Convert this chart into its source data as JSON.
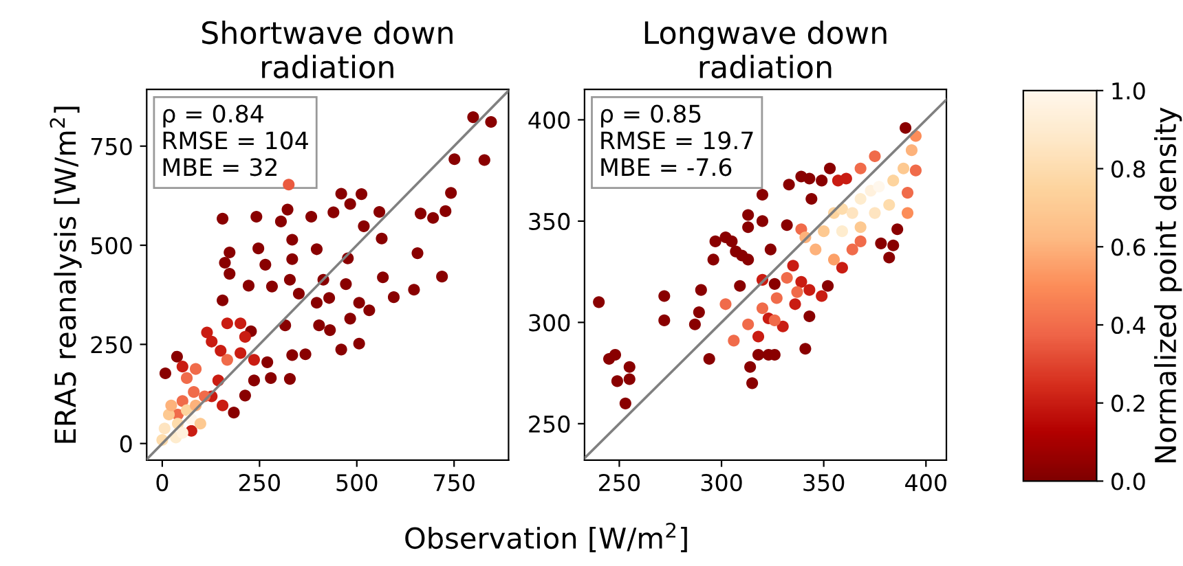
{
  "chart_data": [
    {
      "type": "scatter",
      "title": "Shortwave down\nradiation",
      "xlabel": "Observation [W/m$^{2}$]",
      "ylabel": "ERA5 reanalysis [W/m$^{2}$]",
      "annotations": [
        "ρ = 0.84\nRMSE = 104\nMBE = 32"
      ],
      "xlim": [
        -40,
        890
      ],
      "ylim": [
        -42,
        893
      ],
      "xticks": [
        0,
        250,
        500,
        750
      ],
      "yticks": [
        0,
        250,
        500,
        750
      ],
      "grid": false,
      "legend": false,
      "series": [
        {
          "marker": "circle",
          "x": [
            799,
            845,
            751,
            828,
            460,
            512,
            483,
            558,
            664,
            728,
            742,
            696,
            155,
            242,
            322,
            383,
            440,
            518,
            305,
            334,
            247,
            173,
            397,
            564,
            161,
            265,
            334,
            477,
            656,
            719,
            173,
            222,
            282,
            328,
            351,
            414,
            472,
            567,
            647,
            595,
            429,
            506,
            155,
            397,
            483,
            532,
            403,
            431,
            316,
            228,
            460,
            506,
            368,
            334,
            270,
            279,
            328,
            236,
            213,
            184,
            8,
            38,
            115,
            167,
            201,
            127,
            213,
            150,
            201,
            236,
            52,
            144,
            127,
            155,
            75,
            63,
            86,
            81,
            109,
            52,
            40,
            167,
            17,
            40,
            63,
            86,
            6,
            35,
            52,
            0,
            75,
            98,
            23,
            325
          ],
          "values": [
            823,
            811,
            717,
            715,
            630,
            629,
            604,
            584,
            580,
            586,
            632,
            569,
            567,
            572,
            590,
            572,
            583,
            548,
            560,
            514,
            492,
            482,
            490,
            517,
            456,
            451,
            465,
            467,
            480,
            421,
            428,
            398,
            396,
            413,
            378,
            413,
            402,
            419,
            388,
            369,
            367,
            355,
            361,
            355,
            315,
            336,
            298,
            286,
            298,
            283,
            237,
            252,
            225,
            223,
            205,
            165,
            163,
            159,
            121,
            78,
            177,
            219,
            280,
            303,
            303,
            257,
            269,
            234,
            228,
            211,
            194,
            159,
            119,
            96,
            32,
            165,
            188,
            130,
            119,
            107,
            73,
            211,
            73,
            50,
            84,
            96,
            38,
            15,
            27,
            9,
            61,
            50,
            96,
            653
          ],
          "colors": [
            "#890000",
            "#890000",
            "#890000",
            "#890000",
            "#890000",
            "#890000",
            "#890000",
            "#890000",
            "#890000",
            "#890000",
            "#890000",
            "#890000",
            "#890000",
            "#890000",
            "#890000",
            "#890000",
            "#890000",
            "#890000",
            "#890000",
            "#890000",
            "#890000",
            "#890000",
            "#890000",
            "#890000",
            "#890000",
            "#890000",
            "#890000",
            "#890000",
            "#890000",
            "#890000",
            "#890000",
            "#890000",
            "#890000",
            "#890000",
            "#890000",
            "#890000",
            "#890000",
            "#890000",
            "#890000",
            "#890000",
            "#890000",
            "#890000",
            "#890000",
            "#890000",
            "#890000",
            "#890000",
            "#890000",
            "#890000",
            "#890000",
            "#890000",
            "#890000",
            "#890000",
            "#890000",
            "#890000",
            "#890000",
            "#890000",
            "#890000",
            "#890000",
            "#890000",
            "#890000",
            "#890000",
            "#890000",
            "#c91c12",
            "#c91c12",
            "#c91c12",
            "#c91c12",
            "#c91c12",
            "#c91c12",
            "#c91c12",
            "#c91c12",
            "#c91c12",
            "#c91c12",
            "#c91c12",
            "#c91c12",
            "#c91c12",
            "#f06b4a",
            "#f06b4a",
            "#f06b4a",
            "#f06b4a",
            "#f06b4a",
            "#f06b4a",
            "#f06b4a",
            "#fdc991",
            "#fedcac",
            "#fdd49e",
            "#fdb27b",
            "#fee4c0",
            "#feecce",
            "#fff1dd",
            "#fedcac",
            "#fff7ec",
            "#fdc991",
            "#fdb27b",
            "#ea5a3f"
          ]
        },
        {
          "type": "line",
          "color": "#808080",
          "x": [
            -40,
            890
          ],
          "values": [
            -40,
            890
          ]
        }
      ]
    },
    {
      "type": "scatter",
      "title": "Longwave down\nradiation",
      "annotations": [
        "ρ = 0.85\nRMSE = 19.7\nMBE = -7.6"
      ],
      "xlim": [
        233,
        410
      ],
      "ylim": [
        232,
        415
      ],
      "xticks": [
        250,
        300,
        350,
        400
      ],
      "yticks": [
        250,
        300,
        350,
        400
      ],
      "grid": false,
      "legend": false,
      "clim": [
        0,
        1
      ],
      "clabel": "Normalized point density",
      "cticks": [
        {
          "value": 0,
          "label": "0.0"
        },
        {
          "value": 0.2,
          "label": "0.2"
        },
        {
          "value": 0.4,
          "label": "0.4"
        },
        {
          "value": 0.6,
          "label": "0.6"
        },
        {
          "value": 0.8,
          "label": "0.8"
        },
        {
          "value": 1,
          "label": "1.0"
        }
      ],
      "series": [
        {
          "marker": "circle",
          "x": [
            240,
            245,
            248,
            249,
            253,
            255,
            255,
            272,
            272,
            287,
            289,
            290,
            294,
            296,
            297,
            302,
            305,
            307,
            310,
            313,
            313,
            313,
            309,
            314,
            315,
            320,
            320,
            324,
            318,
            323,
            326,
            333,
            339,
            343,
            349,
            353,
            344,
            341,
            386,
            384,
            382,
            378,
            390,
            332,
            326,
            343,
            352,
            320,
            323,
            318,
            330,
            339,
            343,
            349,
            359,
            357,
            361,
            335,
            336,
            302,
            306,
            313,
            320,
            327,
            332,
            337,
            326,
            368,
            375,
            391,
            395,
            364,
            368,
            339,
            341,
            346,
            350,
            355,
            359,
            364,
            368,
            373,
            377,
            375,
            382,
            384,
            389,
            393,
            395,
            355,
            359,
            368,
            391
          ],
          "values": [
            310,
            282,
            284,
            271,
            260,
            278,
            272,
            313,
            301,
            299,
            305,
            316,
            282,
            331,
            340,
            342,
            340,
            335,
            333,
            331,
            353,
            347,
            318,
            278,
            270,
            350,
            363,
            336,
            284,
            284,
            284,
            368,
            372,
            371,
            370,
            376,
            361,
            287,
            346,
            338,
            332,
            339,
            396,
            348,
            319,
            303,
            318,
            321,
            302,
            293,
            298,
            320,
            316,
            313,
            327,
            370,
            371,
            328,
            309,
            309,
            291,
            299,
            307,
            312,
            322,
            315,
            301,
            376,
            382,
            364,
            375,
            336,
            340,
            346,
            342,
            336,
            345,
            354,
            356,
            354,
            361,
            365,
            367,
            354,
            358,
            370,
            376,
            385,
            392,
            331,
            345,
            347,
            354
          ],
          "colors": [
            "#890000",
            "#890000",
            "#890000",
            "#890000",
            "#890000",
            "#890000",
            "#890000",
            "#890000",
            "#890000",
            "#890000",
            "#890000",
            "#890000",
            "#890000",
            "#890000",
            "#890000",
            "#890000",
            "#890000",
            "#890000",
            "#890000",
            "#890000",
            "#890000",
            "#890000",
            "#890000",
            "#890000",
            "#890000",
            "#890000",
            "#890000",
            "#890000",
            "#890000",
            "#890000",
            "#890000",
            "#890000",
            "#890000",
            "#890000",
            "#890000",
            "#890000",
            "#890000",
            "#890000",
            "#890000",
            "#890000",
            "#890000",
            "#890000",
            "#890000",
            "#890000",
            "#890000",
            "#890000",
            "#890000",
            "#c91c12",
            "#c91c12",
            "#c91c12",
            "#c91c12",
            "#c91c12",
            "#c91c12",
            "#c91c12",
            "#c91c12",
            "#c91c12",
            "#c91c12",
            "#c91c12",
            "#c91c12",
            "#f06b4a",
            "#f06b4a",
            "#f06b4a",
            "#f06b4a",
            "#f06b4a",
            "#f06b4a",
            "#f06b4a",
            "#f06b4a",
            "#f06b4a",
            "#f06b4a",
            "#f06b4a",
            "#f06b4a",
            "#f06b4a",
            "#f06b4a",
            "#f06b4a",
            "#fdb27b",
            "#fdb27b",
            "#fdc991",
            "#fdd49e",
            "#fedcac",
            "#fee4c0",
            "#feecce",
            "#fff1dd",
            "#fff7ec",
            "#fee4c0",
            "#fedcac",
            "#fdd49e",
            "#fdc991",
            "#fdb27b",
            "#fc8d59",
            "#fca068",
            "#feecce",
            "#fdc991",
            "#fc8d59"
          ]
        },
        {
          "type": "line",
          "color": "#808080",
          "x": [
            233,
            410
          ],
          "values": [
            233,
            410
          ]
        }
      ]
    }
  ]
}
